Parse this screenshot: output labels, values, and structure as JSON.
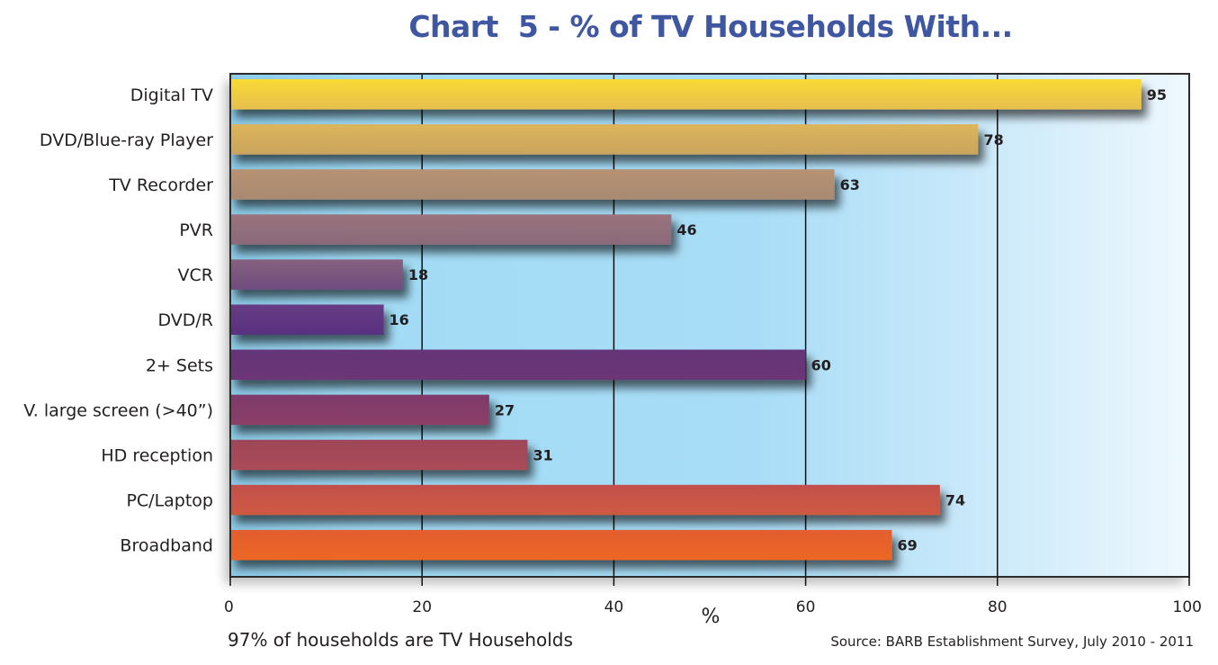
{
  "chart_data": {
    "type": "bar",
    "orientation": "horizontal",
    "title": "Chart  5 - % of TV Households With...",
    "xlabel": "%",
    "ylabel": "",
    "xlim": [
      0,
      100
    ],
    "xticks": [
      0,
      20,
      40,
      60,
      80,
      100
    ],
    "grid": "vertical",
    "categories": [
      "Digital TV",
      "DVD/Blue-ray Player",
      "TV Recorder",
      "PVR",
      "VCR",
      "DVD/R",
      "2+ Sets",
      "V. large screen (>40”)",
      "HD reception",
      "PC/Laptop",
      "Broadband"
    ],
    "values": [
      95,
      78,
      63,
      46,
      18,
      16,
      60,
      27,
      31,
      74,
      69
    ],
    "bar_colors": [
      [
        "#f9da34",
        "#e6bf4e"
      ],
      [
        "#ddb55c",
        "#c9a45c"
      ],
      [
        "#b79272",
        "#a88a72"
      ],
      [
        "#9a737c",
        "#8a6a7a"
      ],
      [
        "#86607f",
        "#6f4d7f"
      ],
      [
        "#673c85",
        "#58307f"
      ],
      [
        "#643478",
        "#6d3575"
      ],
      [
        "#7e3a6c",
        "#8c3f66"
      ],
      [
        "#9e4559",
        "#ab4c58"
      ],
      [
        "#c24f4c",
        "#cf5a42"
      ],
      [
        "#e35d30",
        "#ed6724"
      ]
    ],
    "data_labels": [
      "95",
      "78",
      "63",
      "46",
      "18",
      "16",
      "60",
      "27",
      "31",
      "74",
      "69"
    ],
    "footnote": "97% of households are TV Households",
    "source": "Source: BARB Establishment Survey, July 2010 - 2011"
  }
}
